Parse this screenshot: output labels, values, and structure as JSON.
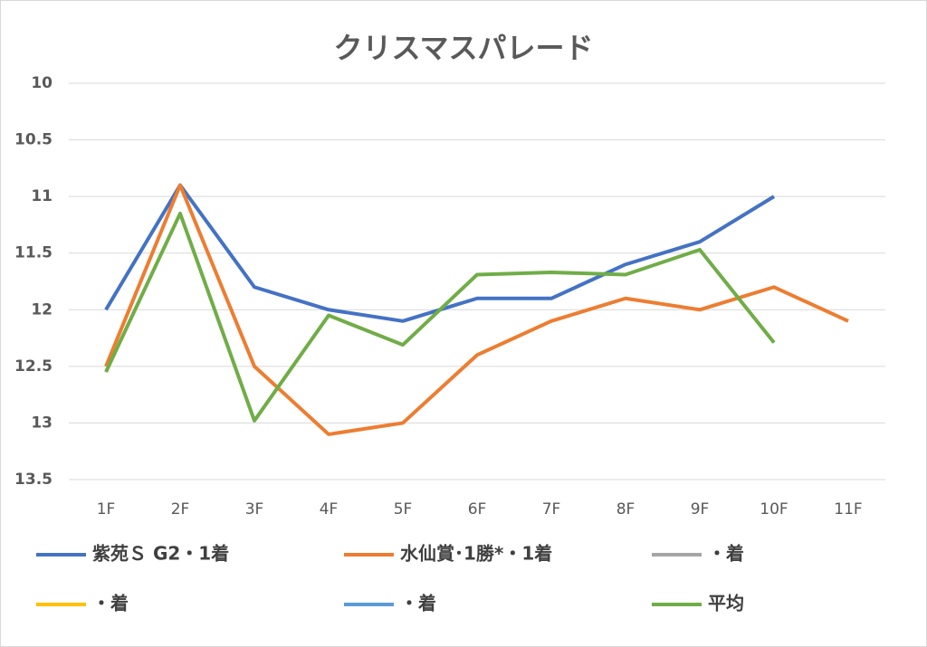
{
  "chart_data": {
    "type": "line",
    "title": "クリスマスパレード",
    "categories": [
      "1F",
      "2F",
      "3F",
      "4F",
      "5F",
      "6F",
      "7F",
      "8F",
      "9F",
      "10F",
      "11F"
    ],
    "series": [
      {
        "name": "紫苑Ｓ G2・1着",
        "color": "#4472c4",
        "values": [
          12.0,
          10.9,
          11.8,
          12.0,
          12.1,
          11.9,
          11.9,
          11.6,
          11.4,
          11.0,
          null
        ]
      },
      {
        "name": "水仙賞･1勝*・1着",
        "color": "#ed7d31",
        "values": [
          12.5,
          10.9,
          12.5,
          13.1,
          13.0,
          12.4,
          12.1,
          11.9,
          12.0,
          11.8,
          12.1
        ]
      },
      {
        "name": "・着",
        "color": "#a5a5a5",
        "values": [
          null,
          null,
          null,
          null,
          null,
          null,
          null,
          null,
          null,
          null,
          null
        ]
      },
      {
        "name": "・着",
        "color": "#ffc000",
        "values": [
          null,
          null,
          null,
          null,
          null,
          null,
          null,
          null,
          null,
          null,
          null
        ]
      },
      {
        "name": "・着",
        "color": "#5b9bd5",
        "values": [
          null,
          null,
          null,
          null,
          null,
          null,
          null,
          null,
          null,
          null,
          null
        ]
      },
      {
        "name": "平均",
        "color": "#70ad47",
        "values": [
          12.55,
          11.15,
          12.98,
          12.05,
          12.31,
          11.69,
          11.67,
          11.69,
          11.47,
          12.29,
          null
        ]
      }
    ],
    "ylim": [
      10,
      13.5
    ],
    "y_inverted": true,
    "yticks": [
      10,
      10.5,
      11,
      11.5,
      12,
      12.5,
      13,
      13.5
    ],
    "grid": true
  }
}
